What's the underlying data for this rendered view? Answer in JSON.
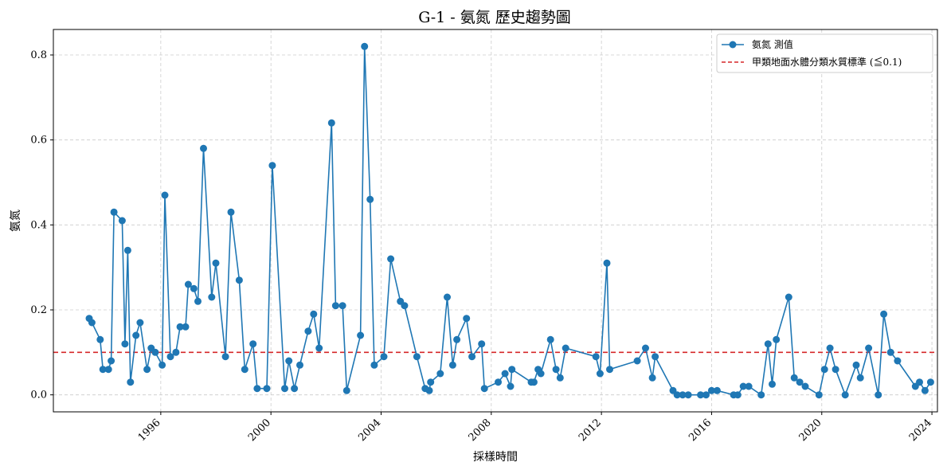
{
  "chart_data": {
    "type": "line",
    "title": "G-1 - 氨氮 歷史趨勢圖",
    "xlabel": "採樣時間",
    "ylabel": "氨氮",
    "xlim": [
      1992.1,
      2024.2
    ],
    "ylim": [
      -0.04,
      0.86
    ],
    "x_ticks": [
      1996,
      2000,
      2004,
      2008,
      2012,
      2016,
      2020,
      2024
    ],
    "y_ticks": [
      0.0,
      0.2,
      0.4,
      0.6,
      0.8
    ],
    "y_tick_labels": [
      "0.0",
      "0.2",
      "0.4",
      "0.6",
      "0.8"
    ],
    "grid": true,
    "legend_position": "top-right",
    "series": [
      {
        "name": "氨氮 測值",
        "color": "#1f77b4",
        "points": [
          [
            1993.4,
            0.18
          ],
          [
            1993.5,
            0.17
          ],
          [
            1993.8,
            0.13
          ],
          [
            1993.9,
            0.06
          ],
          [
            1994.1,
            0.06
          ],
          [
            1994.2,
            0.08
          ],
          [
            1994.3,
            0.43
          ],
          [
            1994.6,
            0.41
          ],
          [
            1994.7,
            0.12
          ],
          [
            1994.8,
            0.34
          ],
          [
            1994.9,
            0.03
          ],
          [
            1995.1,
            0.14
          ],
          [
            1995.25,
            0.17
          ],
          [
            1995.5,
            0.06
          ],
          [
            1995.65,
            0.11
          ],
          [
            1995.8,
            0.1
          ],
          [
            1996.05,
            0.07
          ],
          [
            1996.15,
            0.47
          ],
          [
            1996.35,
            0.09
          ],
          [
            1996.55,
            0.1
          ],
          [
            1996.7,
            0.16
          ],
          [
            1996.9,
            0.16
          ],
          [
            1997.0,
            0.26
          ],
          [
            1997.2,
            0.25
          ],
          [
            1997.35,
            0.22
          ],
          [
            1997.55,
            0.58
          ],
          [
            1997.85,
            0.23
          ],
          [
            1998.0,
            0.31
          ],
          [
            1998.35,
            0.09
          ],
          [
            1998.55,
            0.43
          ],
          [
            1998.85,
            0.27
          ],
          [
            1999.05,
            0.06
          ],
          [
            1999.35,
            0.12
          ],
          [
            1999.5,
            0.015
          ],
          [
            1999.85,
            0.015
          ],
          [
            2000.05,
            0.54
          ],
          [
            2000.5,
            0.015
          ],
          [
            2000.65,
            0.08
          ],
          [
            2000.85,
            0.015
          ],
          [
            2001.05,
            0.07
          ],
          [
            2001.35,
            0.15
          ],
          [
            2001.55,
            0.19
          ],
          [
            2001.75,
            0.11
          ],
          [
            2002.2,
            0.64
          ],
          [
            2002.35,
            0.21
          ],
          [
            2002.6,
            0.21
          ],
          [
            2002.75,
            0.01
          ],
          [
            2003.25,
            0.14
          ],
          [
            2003.4,
            0.82
          ],
          [
            2003.6,
            0.46
          ],
          [
            2003.75,
            0.07
          ],
          [
            2004.1,
            0.09
          ],
          [
            2004.35,
            0.32
          ],
          [
            2004.7,
            0.22
          ],
          [
            2004.85,
            0.21
          ],
          [
            2005.3,
            0.09
          ],
          [
            2005.6,
            0.015
          ],
          [
            2005.75,
            0.01
          ],
          [
            2005.8,
            0.03
          ],
          [
            2006.15,
            0.05
          ],
          [
            2006.4,
            0.23
          ],
          [
            2006.6,
            0.07
          ],
          [
            2006.75,
            0.13
          ],
          [
            2007.1,
            0.18
          ],
          [
            2007.3,
            0.09
          ],
          [
            2007.65,
            0.12
          ],
          [
            2007.75,
            0.015
          ],
          [
            2008.25,
            0.03
          ],
          [
            2008.5,
            0.05
          ],
          [
            2008.7,
            0.02
          ],
          [
            2008.75,
            0.06
          ],
          [
            2009.45,
            0.03
          ],
          [
            2009.55,
            0.03
          ],
          [
            2009.7,
            0.06
          ],
          [
            2009.8,
            0.05
          ],
          [
            2010.15,
            0.13
          ],
          [
            2010.35,
            0.06
          ],
          [
            2010.5,
            0.04
          ],
          [
            2010.7,
            0.11
          ],
          [
            2011.8,
            0.09
          ],
          [
            2011.95,
            0.05
          ],
          [
            2012.2,
            0.31
          ],
          [
            2012.3,
            0.06
          ],
          [
            2013.3,
            0.08
          ],
          [
            2013.6,
            0.11
          ],
          [
            2013.85,
            0.04
          ],
          [
            2013.95,
            0.09
          ],
          [
            2014.6,
            0.01
          ],
          [
            2014.75,
            0.0
          ],
          [
            2014.95,
            0.0
          ],
          [
            2015.15,
            0.0
          ],
          [
            2015.6,
            0.0
          ],
          [
            2015.8,
            0.0
          ],
          [
            2016.0,
            0.01
          ],
          [
            2016.2,
            0.01
          ],
          [
            2016.8,
            0.0
          ],
          [
            2016.95,
            0.0
          ],
          [
            2017.15,
            0.02
          ],
          [
            2017.35,
            0.02
          ],
          [
            2017.8,
            0.0
          ],
          [
            2018.05,
            0.12
          ],
          [
            2018.2,
            0.025
          ],
          [
            2018.35,
            0.13
          ],
          [
            2018.8,
            0.23
          ],
          [
            2019.0,
            0.04
          ],
          [
            2019.2,
            0.03
          ],
          [
            2019.4,
            0.02
          ],
          [
            2019.9,
            0.0
          ],
          [
            2020.1,
            0.06
          ],
          [
            2020.3,
            0.11
          ],
          [
            2020.5,
            0.06
          ],
          [
            2020.85,
            0.0
          ],
          [
            2021.25,
            0.07
          ],
          [
            2021.4,
            0.04
          ],
          [
            2021.7,
            0.11
          ],
          [
            2022.05,
            0.0
          ],
          [
            2022.25,
            0.19
          ],
          [
            2022.5,
            0.1
          ],
          [
            2022.75,
            0.08
          ],
          [
            2023.4,
            0.02
          ],
          [
            2023.55,
            0.03
          ],
          [
            2023.75,
            0.01
          ],
          [
            2023.95,
            0.03
          ]
        ]
      },
      {
        "name": "甲類地面水體分類水質標準 (≦0.1)",
        "color": "#d62728",
        "style": "dashed",
        "value": 0.1
      }
    ]
  }
}
